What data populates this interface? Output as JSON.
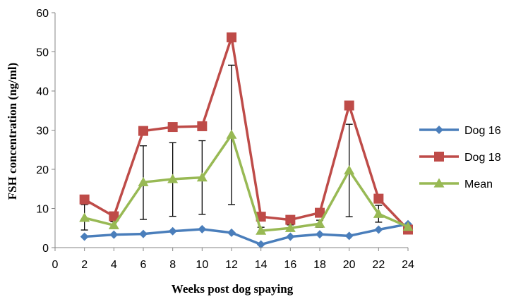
{
  "chart_data": {
    "type": "line",
    "xlabel": "Weeks post dog spaying",
    "ylabel": "FSH concentration (ng/ml)",
    "xlim": [
      0,
      24
    ],
    "ylim": [
      0,
      60
    ],
    "x_ticks": [
      "0",
      "2",
      "4",
      "6",
      "8",
      "10",
      "12",
      "14",
      "16",
      "18",
      "20",
      "22",
      "24"
    ],
    "y_ticks": [
      "0",
      "10",
      "20",
      "30",
      "40",
      "50",
      "60"
    ],
    "x": [
      2,
      4,
      6,
      8,
      10,
      12,
      14,
      16,
      18,
      20,
      22,
      24
    ],
    "grid": false,
    "legend_position": "right",
    "series": [
      {
        "name": "Dog 16",
        "color": "#4a7ebb",
        "marker": "diamond",
        "values": [
          2.8,
          3.3,
          3.5,
          4.2,
          4.7,
          3.8,
          0.8,
          2.8,
          3.4,
          3.0,
          4.6,
          6.0
        ]
      },
      {
        "name": "Dog 18",
        "color": "#be4b48",
        "marker": "square",
        "values": [
          12.3,
          8.0,
          29.8,
          30.8,
          31.0,
          53.7,
          7.9,
          7.1,
          8.9,
          36.3,
          12.5,
          4.6
        ]
      },
      {
        "name": "Mean",
        "color": "#98b954",
        "marker": "triangle",
        "values": [
          7.6,
          5.7,
          16.7,
          17.5,
          17.9,
          28.8,
          4.3,
          5.0,
          6.1,
          19.7,
          8.6,
          5.3
        ],
        "error_bars": {
          "color": "#000000",
          "low": [
            4.5,
            4.9,
            7.2,
            8.0,
            8.5,
            11.0,
            3.5,
            4.4,
            5.2,
            7.9,
            6.5,
            4.7
          ],
          "high": [
            11.0,
            6.6,
            26.0,
            26.8,
            27.3,
            46.6,
            5.2,
            5.8,
            7.0,
            31.5,
            10.8,
            5.9
          ]
        }
      }
    ]
  }
}
